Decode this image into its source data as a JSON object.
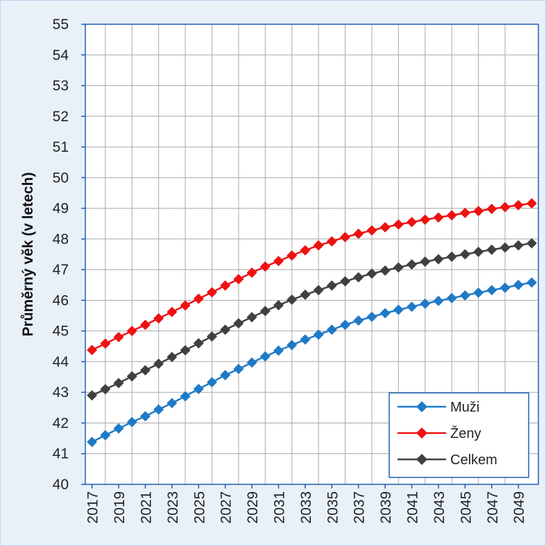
{
  "chart_data": {
    "type": "line",
    "title": "",
    "xlabel": "",
    "ylabel": "Průměrný věk (v letech)",
    "ylim": [
      40,
      55
    ],
    "ytick_step": 1,
    "x": [
      2017,
      2018,
      2019,
      2020,
      2021,
      2022,
      2023,
      2024,
      2025,
      2026,
      2027,
      2028,
      2029,
      2030,
      2031,
      2032,
      2033,
      2034,
      2035,
      2036,
      2037,
      2038,
      2039,
      2040,
      2041,
      2042,
      2043,
      2044,
      2045,
      2046,
      2047,
      2048,
      2049,
      2050
    ],
    "x_tick_labels": [
      "2017",
      "2019",
      "2021",
      "2023",
      "2025",
      "2027",
      "2029",
      "2031",
      "2033",
      "2035",
      "2037",
      "2039",
      "2041",
      "2043",
      "2045",
      "2047",
      "2049"
    ],
    "grid": true,
    "legend_position": "bottom-right",
    "series": [
      {
        "name": "Muži",
        "color": "#1f7ac6",
        "marker": "diamond",
        "values": [
          41.38,
          41.6,
          41.82,
          42.03,
          42.22,
          42.44,
          42.65,
          42.87,
          43.11,
          43.33,
          43.56,
          43.76,
          43.97,
          44.17,
          44.36,
          44.54,
          44.72,
          44.88,
          45.04,
          45.2,
          45.34,
          45.46,
          45.58,
          45.69,
          45.79,
          45.89,
          45.98,
          46.07,
          46.16,
          46.25,
          46.33,
          46.41,
          46.5,
          46.58
        ]
      },
      {
        "name": "Ženy",
        "color": "#ee1111",
        "marker": "diamond",
        "values": [
          44.38,
          44.59,
          44.8,
          45.0,
          45.2,
          45.41,
          45.62,
          45.83,
          46.05,
          46.26,
          46.48,
          46.69,
          46.9,
          47.1,
          47.28,
          47.46,
          47.63,
          47.79,
          47.92,
          48.06,
          48.17,
          48.28,
          48.38,
          48.47,
          48.55,
          48.63,
          48.7,
          48.77,
          48.85,
          48.91,
          48.98,
          49.04,
          49.1,
          49.16
        ]
      },
      {
        "name": "Celkem",
        "color": "#404040",
        "marker": "diamond",
        "values": [
          42.9,
          43.1,
          43.3,
          43.52,
          43.72,
          43.93,
          44.15,
          44.37,
          44.6,
          44.82,
          45.04,
          45.25,
          45.45,
          45.65,
          45.84,
          46.02,
          46.18,
          46.33,
          46.48,
          46.62,
          46.75,
          46.87,
          46.97,
          47.07,
          47.17,
          47.26,
          47.34,
          47.42,
          47.5,
          47.58,
          47.65,
          47.72,
          47.79,
          47.86
        ]
      }
    ]
  }
}
